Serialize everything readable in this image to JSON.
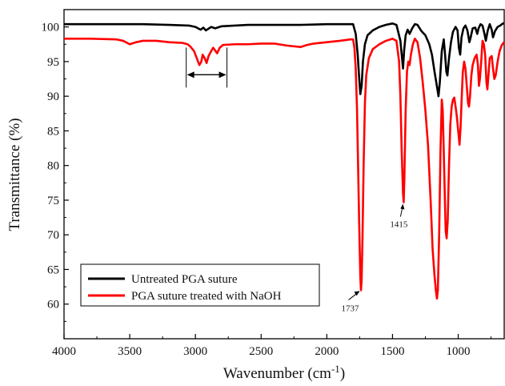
{
  "chart_data": {
    "type": "line",
    "xlabel": "Wavenumber (cm",
    "xlabel_sup": "-1",
    "xlabel_close": ")",
    "ylabel": "Transmittance (%)",
    "xlim": [
      4000,
      650
    ],
    "ylim": [
      55,
      102.5
    ],
    "x_reversed": true,
    "x_ticks": [
      4000,
      3500,
      3000,
      2500,
      2000,
      1500,
      1000
    ],
    "y_ticks": [
      60,
      65,
      70,
      75,
      80,
      85,
      90,
      95,
      100
    ],
    "grid": false,
    "legend_position": "bottom-left",
    "series": [
      {
        "name": "Untreated PGA suture",
        "color": "#000000",
        "points": [
          [
            4000,
            100.4
          ],
          [
            3800,
            100.4
          ],
          [
            3600,
            100.4
          ],
          [
            3400,
            100.4
          ],
          [
            3200,
            100.3
          ],
          [
            3050,
            100.2
          ],
          [
            3000,
            100.0
          ],
          [
            2960,
            99.6
          ],
          [
            2940,
            99.9
          ],
          [
            2920,
            99.5
          ],
          [
            2880,
            100.0
          ],
          [
            2850,
            99.8
          ],
          [
            2800,
            100.1
          ],
          [
            2600,
            100.3
          ],
          [
            2400,
            100.3
          ],
          [
            2200,
            100.3
          ],
          [
            2000,
            100.4
          ],
          [
            1850,
            100.4
          ],
          [
            1800,
            100.4
          ],
          [
            1780,
            99.0
          ],
          [
            1765,
            96.0
          ],
          [
            1755,
            93.0
          ],
          [
            1745,
            90.3
          ],
          [
            1735,
            91.5
          ],
          [
            1725,
            95.0
          ],
          [
            1710,
            97.5
          ],
          [
            1690,
            98.8
          ],
          [
            1650,
            99.5
          ],
          [
            1600,
            100.0
          ],
          [
            1550,
            100.3
          ],
          [
            1500,
            100.5
          ],
          [
            1470,
            100.3
          ],
          [
            1440,
            98.0
          ],
          [
            1425,
            95.0
          ],
          [
            1420,
            94.0
          ],
          [
            1412,
            96.5
          ],
          [
            1400,
            98.8
          ],
          [
            1385,
            99.6
          ],
          [
            1370,
            99.0
          ],
          [
            1350,
            99.8
          ],
          [
            1330,
            100.4
          ],
          [
            1310,
            100.3
          ],
          [
            1280,
            99.4
          ],
          [
            1250,
            98.8
          ],
          [
            1220,
            97.5
          ],
          [
            1200,
            96.0
          ],
          [
            1180,
            93.5
          ],
          [
            1160,
            91.2
          ],
          [
            1150,
            90.0
          ],
          [
            1140,
            92.0
          ],
          [
            1125,
            96.5
          ],
          [
            1110,
            98.2
          ],
          [
            1100,
            96.0
          ],
          [
            1090,
            93.5
          ],
          [
            1082,
            93.0
          ],
          [
            1070,
            95.5
          ],
          [
            1055,
            97.8
          ],
          [
            1040,
            99.3
          ],
          [
            1020,
            100.0
          ],
          [
            1005,
            99.5
          ],
          [
            995,
            97.0
          ],
          [
            985,
            96.0
          ],
          [
            975,
            98.5
          ],
          [
            960,
            99.8
          ],
          [
            945,
            100.2
          ],
          [
            930,
            99.5
          ],
          [
            915,
            97.8
          ],
          [
            905,
            98.5
          ],
          [
            890,
            99.8
          ],
          [
            870,
            99.9
          ],
          [
            855,
            99.0
          ],
          [
            845,
            99.8
          ],
          [
            830,
            100.4
          ],
          [
            815,
            100.2
          ],
          [
            800,
            99.0
          ],
          [
            790,
            98.0
          ],
          [
            775,
            99.5
          ],
          [
            760,
            100.4
          ],
          [
            745,
            99.6
          ],
          [
            735,
            98.5
          ],
          [
            720,
            99.4
          ],
          [
            700,
            100.0
          ],
          [
            680,
            100.2
          ],
          [
            660,
            100.5
          ],
          [
            650,
            100.5
          ]
        ]
      },
      {
        "name": "PGA suture treated with NaOH",
        "color": "#ff0000",
        "points": [
          [
            4000,
            98.3
          ],
          [
            3800,
            98.3
          ],
          [
            3600,
            98.2
          ],
          [
            3550,
            98.0
          ],
          [
            3500,
            97.5
          ],
          [
            3450,
            97.8
          ],
          [
            3400,
            98.0
          ],
          [
            3300,
            98.0
          ],
          [
            3200,
            97.8
          ],
          [
            3100,
            97.7
          ],
          [
            3060,
            97.5
          ],
          [
            3040,
            97.2
          ],
          [
            3010,
            96.5
          ],
          [
            2990,
            95.5
          ],
          [
            2970,
            94.5
          ],
          [
            2955,
            95.0
          ],
          [
            2945,
            96.0
          ],
          [
            2930,
            95.5
          ],
          [
            2915,
            94.8
          ],
          [
            2900,
            95.8
          ],
          [
            2880,
            96.5
          ],
          [
            2865,
            97.0
          ],
          [
            2850,
            96.6
          ],
          [
            2835,
            96.2
          ],
          [
            2815,
            97.0
          ],
          [
            2790,
            97.4
          ],
          [
            2700,
            97.5
          ],
          [
            2600,
            97.5
          ],
          [
            2500,
            97.6
          ],
          [
            2400,
            97.6
          ],
          [
            2300,
            97.3
          ],
          [
            2200,
            97.1
          ],
          [
            2150,
            97.4
          ],
          [
            2100,
            97.6
          ],
          [
            2000,
            97.8
          ],
          [
            1900,
            98.0
          ],
          [
            1820,
            98.2
          ],
          [
            1800,
            98.2
          ],
          [
            1790,
            97.0
          ],
          [
            1780,
            94.0
          ],
          [
            1770,
            88.0
          ],
          [
            1760,
            78.0
          ],
          [
            1752,
            70.0
          ],
          [
            1745,
            64.0
          ],
          [
            1740,
            62.0
          ],
          [
            1735,
            63.5
          ],
          [
            1728,
            70.0
          ],
          [
            1720,
            80.0
          ],
          [
            1710,
            89.0
          ],
          [
            1700,
            93.0
          ],
          [
            1680,
            95.5
          ],
          [
            1650,
            96.8
          ],
          [
            1600,
            97.5
          ],
          [
            1550,
            98.0
          ],
          [
            1500,
            98.3
          ],
          [
            1470,
            98.0
          ],
          [
            1450,
            95.0
          ],
          [
            1440,
            90.0
          ],
          [
            1430,
            82.0
          ],
          [
            1420,
            76.0
          ],
          [
            1415,
            74.7
          ],
          [
            1410,
            78.0
          ],
          [
            1400,
            88.0
          ],
          [
            1390,
            93.5
          ],
          [
            1380,
            95.0
          ],
          [
            1370,
            94.5
          ],
          [
            1360,
            96.0
          ],
          [
            1345,
            97.5
          ],
          [
            1330,
            98.3
          ],
          [
            1310,
            97.8
          ],
          [
            1290,
            95.5
          ],
          [
            1270,
            92.0
          ],
          [
            1250,
            88.0
          ],
          [
            1230,
            83.0
          ],
          [
            1210,
            75.0
          ],
          [
            1195,
            68.0
          ],
          [
            1180,
            64.0
          ],
          [
            1170,
            62.0
          ],
          [
            1162,
            60.8
          ],
          [
            1155,
            62.0
          ],
          [
            1145,
            70.0
          ],
          [
            1135,
            82.0
          ],
          [
            1125,
            89.5
          ],
          [
            1118,
            88.0
          ],
          [
            1110,
            82.0
          ],
          [
            1100,
            74.0
          ],
          [
            1095,
            70.5
          ],
          [
            1088,
            69.5
          ],
          [
            1080,
            72.0
          ],
          [
            1070,
            80.0
          ],
          [
            1060,
            86.0
          ],
          [
            1050,
            88.5
          ],
          [
            1040,
            89.5
          ],
          [
            1030,
            89.8
          ],
          [
            1020,
            88.5
          ],
          [
            1010,
            87.0
          ],
          [
            1000,
            85.0
          ],
          [
            990,
            83.0
          ],
          [
            982,
            85.5
          ],
          [
            975,
            89.0
          ],
          [
            965,
            93.5
          ],
          [
            955,
            95.0
          ],
          [
            945,
            94.0
          ],
          [
            935,
            91.5
          ],
          [
            925,
            89.0
          ],
          [
            918,
            88.5
          ],
          [
            910,
            90.0
          ],
          [
            900,
            93.0
          ],
          [
            890,
            94.5
          ],
          [
            875,
            95.5
          ],
          [
            860,
            96.0
          ],
          [
            850,
            94.5
          ],
          [
            842,
            91.5
          ],
          [
            835,
            92.5
          ],
          [
            825,
            95.0
          ],
          [
            815,
            98.0
          ],
          [
            805,
            97.5
          ],
          [
            795,
            96.0
          ],
          [
            785,
            92.0
          ],
          [
            778,
            91.0
          ],
          [
            770,
            93.0
          ],
          [
            760,
            95.5
          ],
          [
            745,
            95.8
          ],
          [
            735,
            94.0
          ],
          [
            725,
            92.5
          ],
          [
            715,
            93.0
          ],
          [
            700,
            95.0
          ],
          [
            685,
            96.5
          ],
          [
            670,
            97.3
          ],
          [
            660,
            97.6
          ],
          [
            650,
            97.8
          ]
        ]
      }
    ],
    "annotations": [
      {
        "text": "1737",
        "x": 1737,
        "y": 62.0
      },
      {
        "text": "1415",
        "x": 1415,
        "y": 74.7
      }
    ],
    "range_marker": {
      "x_from": 3070,
      "x_to": 2760,
      "y": 93.1
    }
  }
}
